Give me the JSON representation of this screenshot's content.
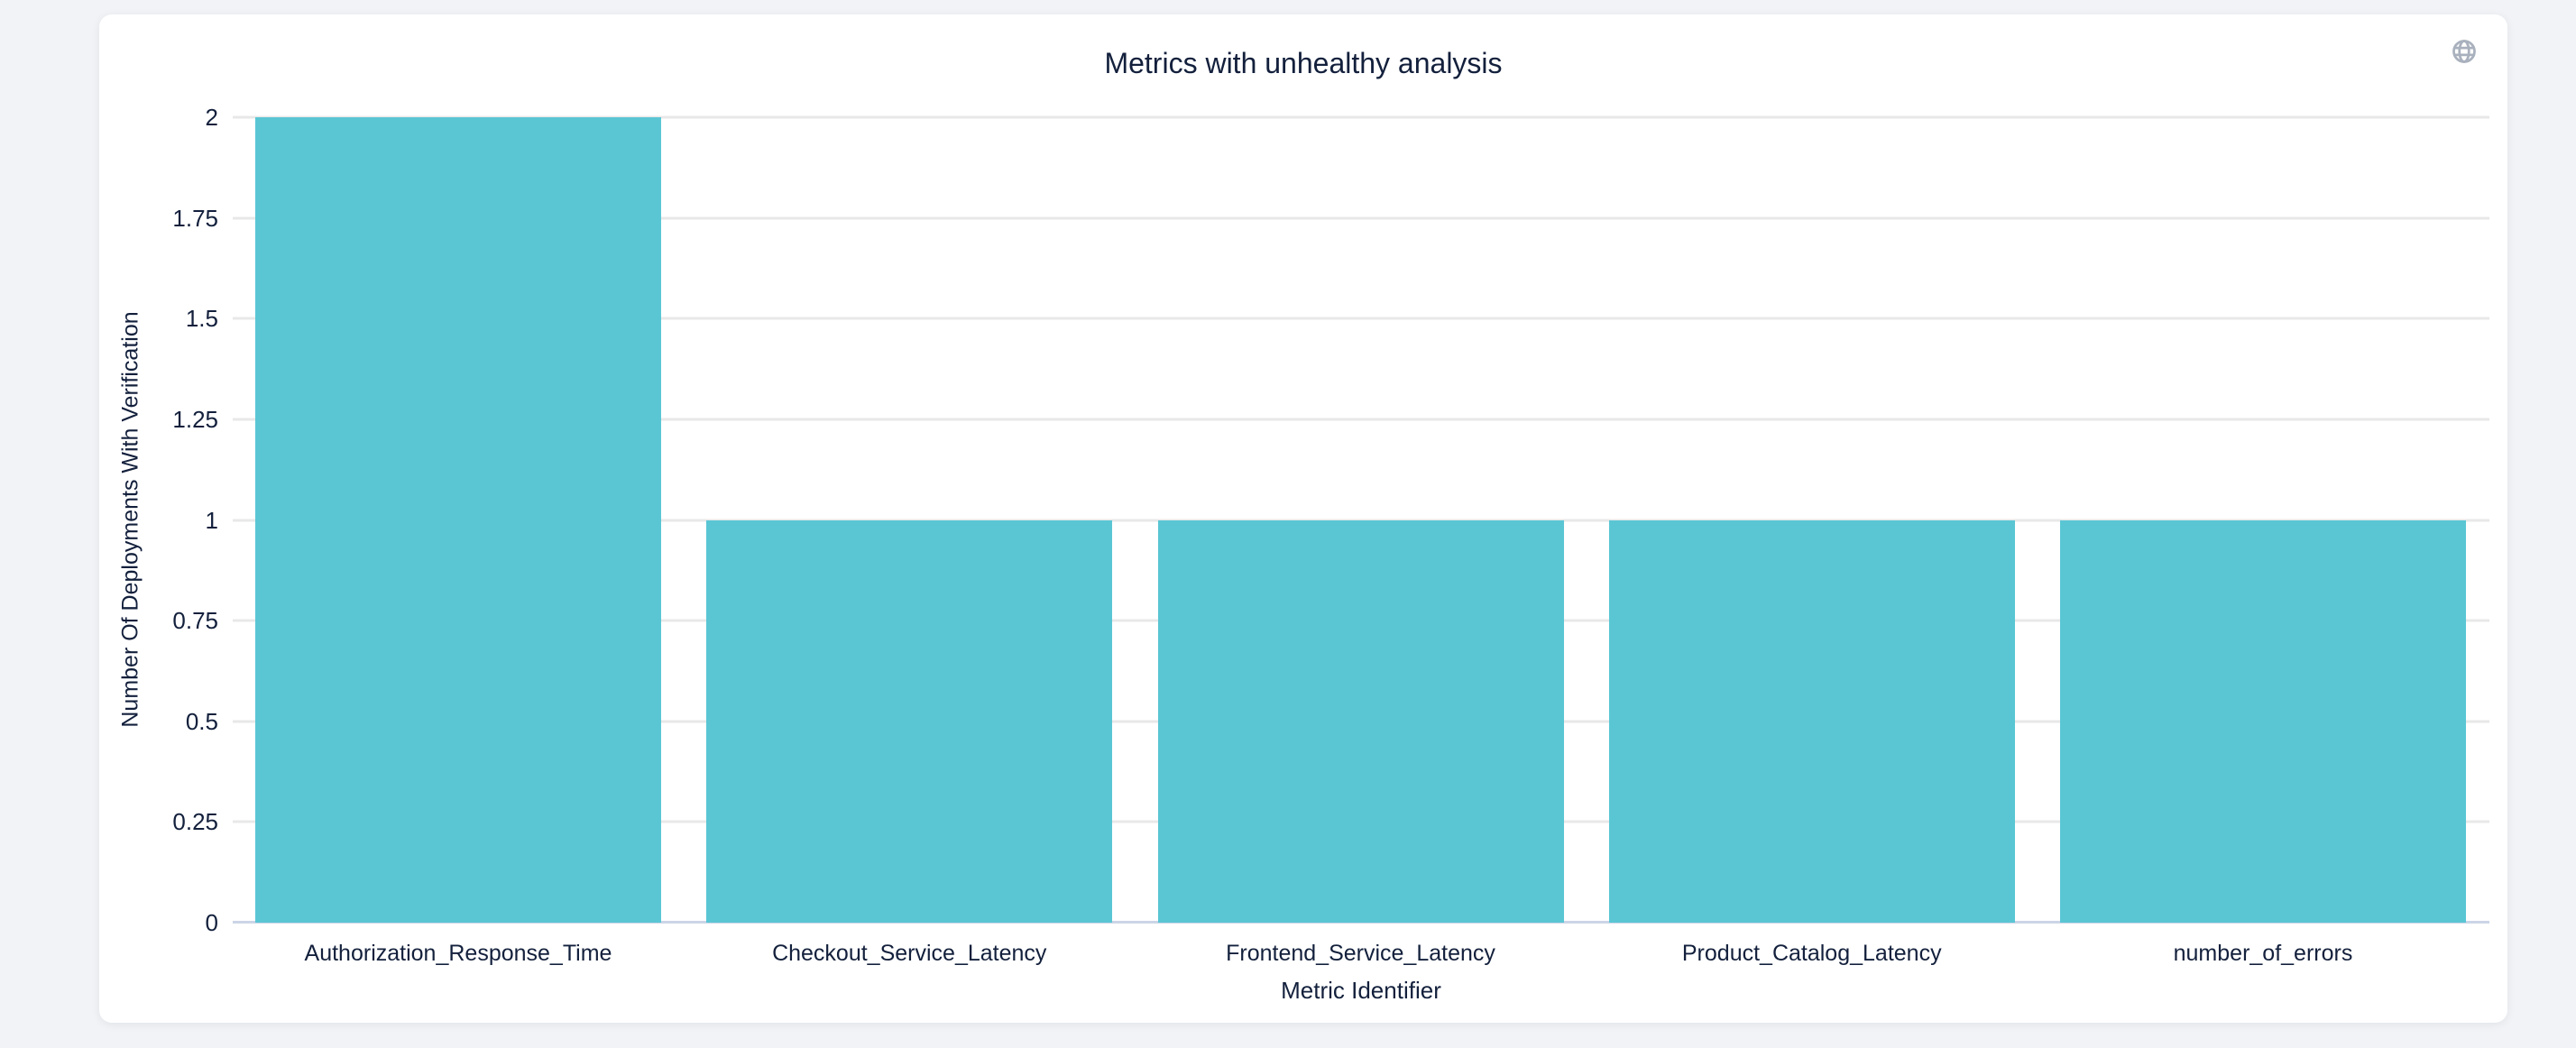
{
  "chart_data": {
    "type": "bar",
    "title": "Metrics with unhealthy analysis",
    "xlabel": "Metric Identifier",
    "ylabel": "Number Of Deployments With Verification",
    "categories": [
      "Authorization_Response_Time",
      "Checkout_Service_Latency",
      "Frontend_Service_Latency",
      "Product_Catalog_Latency",
      "number_of_errors"
    ],
    "values": [
      2,
      1,
      1,
      1,
      1
    ],
    "ylim": [
      0,
      2
    ],
    "ytick_interval": 0.25,
    "ytick_labels": [
      "0",
      "0.25",
      "0.5",
      "0.75",
      "1",
      "1.25",
      "1.5",
      "1.75",
      "2"
    ],
    "grid": true,
    "legend": "none",
    "colors": {
      "bar": "#5AC6D4",
      "gridline": "#E8E8E8",
      "axis_line": "#CBD5E6",
      "text": "#13203C",
      "background": "#F1F3F6",
      "card": "#FFFFFF",
      "icon": "#A9B1BE"
    }
  },
  "icons": {
    "top_right": "globe-icon"
  }
}
